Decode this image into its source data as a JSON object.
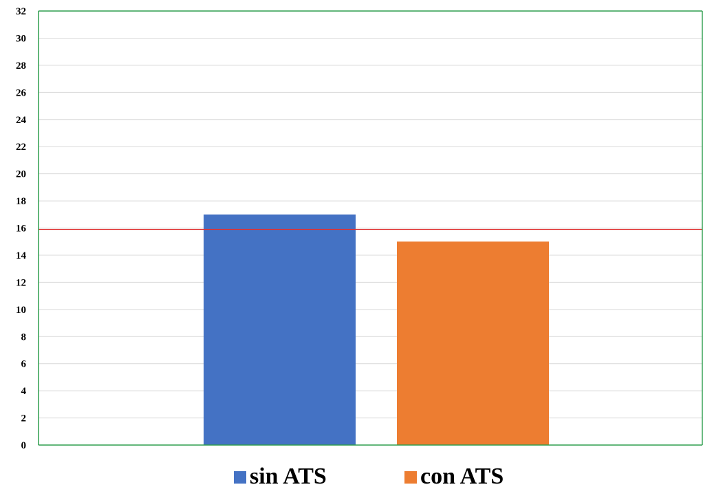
{
  "chart_data": {
    "type": "bar",
    "title": "",
    "xlabel": "",
    "ylabel": "",
    "ylim": [
      0,
      32
    ],
    "ytick_step": 2,
    "grid": true,
    "legend_position": "bottom",
    "reference_line": {
      "y": 15.9,
      "color": "#e03030"
    },
    "series": [
      {
        "name": "sin ATS",
        "value": 17,
        "color": "#4472c4"
      },
      {
        "name": "con ATS",
        "value": 15,
        "color": "#ed7d31"
      }
    ],
    "colors": {
      "axis": "#2e9e4f",
      "grid": "#d9d9d9"
    }
  }
}
